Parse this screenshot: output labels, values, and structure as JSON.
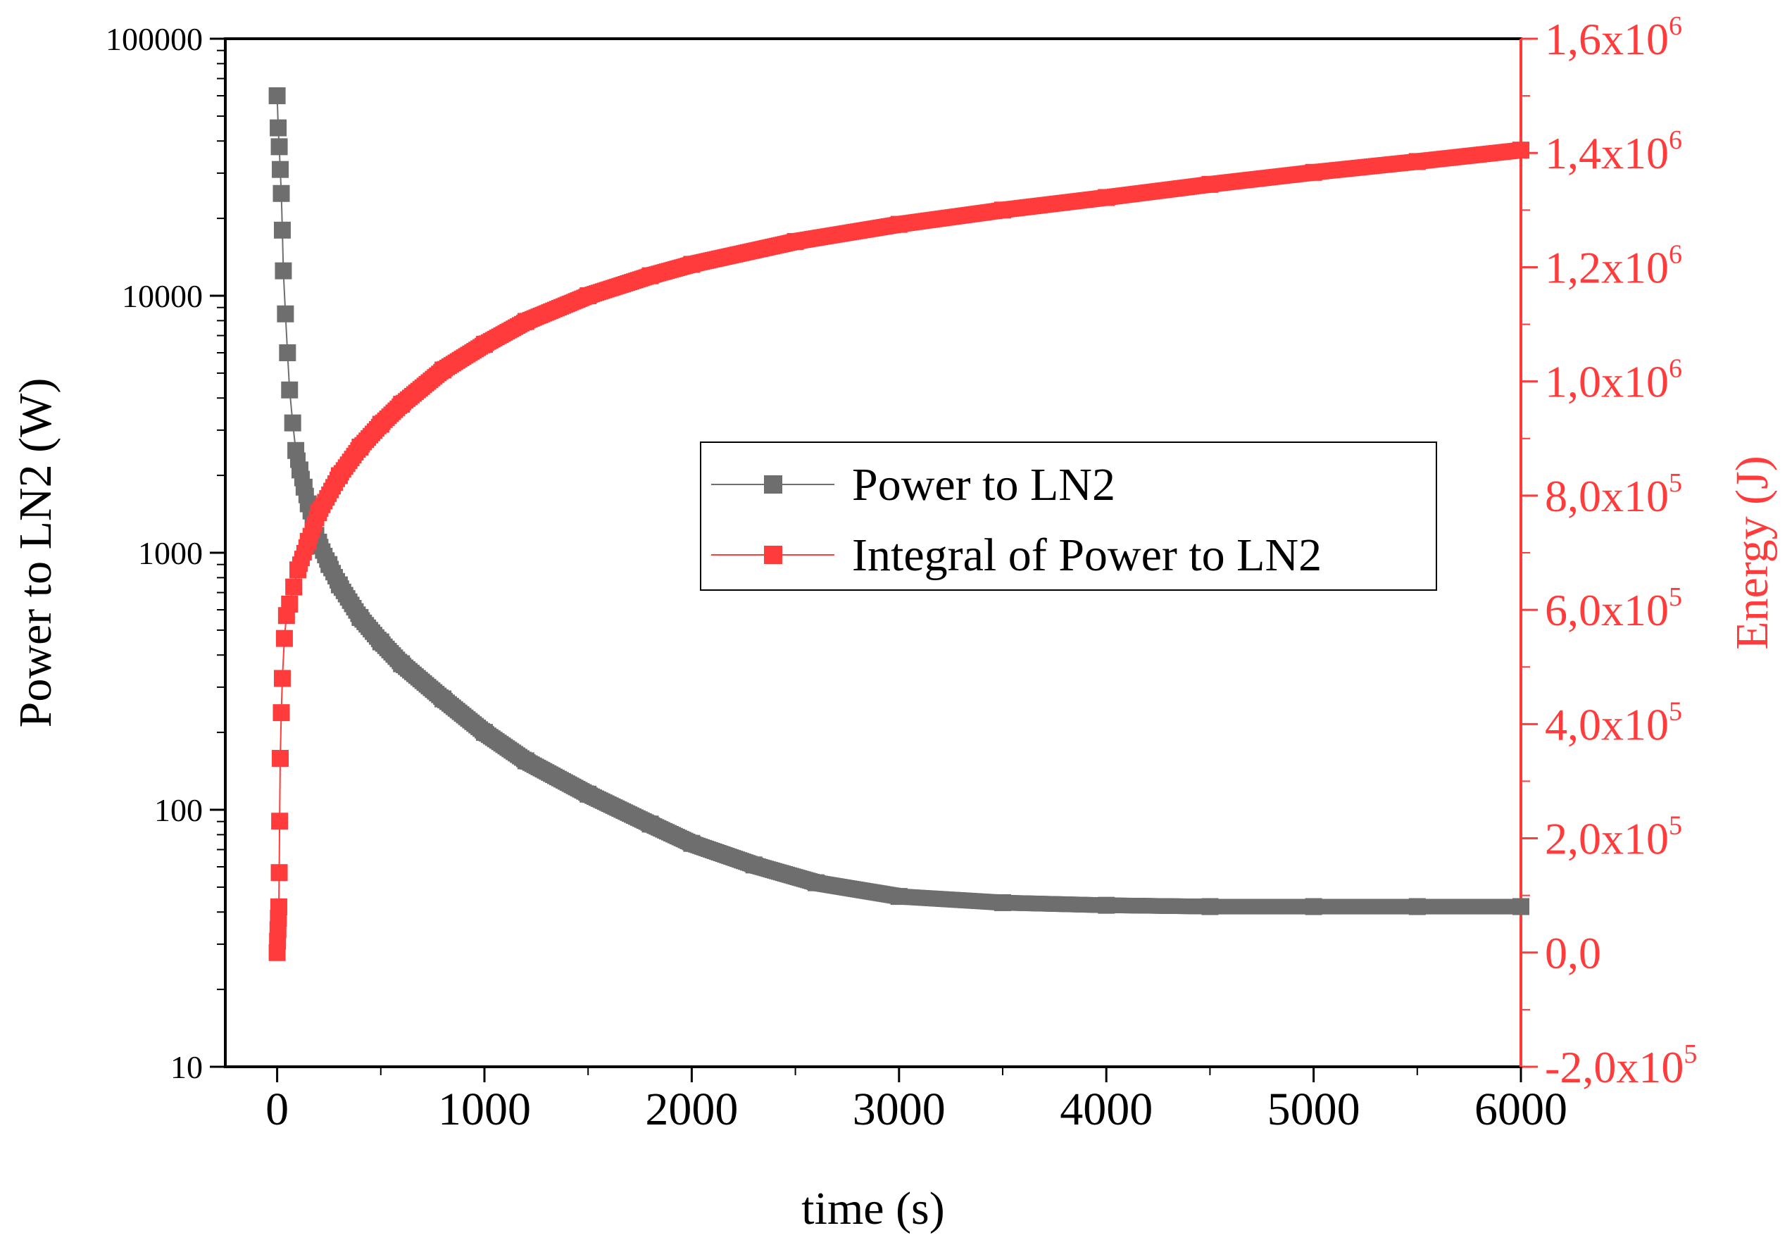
{
  "chart_data": {
    "type": "scatter",
    "xlabel": "time (s)",
    "ylabel_left": "Power to LN2 (W)",
    "ylabel_right": "Energy (J)",
    "xlim": [
      -250,
      6000
    ],
    "x_ticks": [
      "0",
      "1000",
      "2000",
      "3000",
      "4000",
      "5000",
      "6000"
    ],
    "x_tick_values": [
      0,
      1000,
      2000,
      3000,
      4000,
      5000,
      6000
    ],
    "y_left_scale": "log",
    "y_left_lim": [
      10,
      100000
    ],
    "y_left_ticks": [
      "10",
      "100",
      "1000",
      "10000",
      "100000"
    ],
    "y_left_tick_values": [
      10,
      100,
      1000,
      10000,
      100000
    ],
    "y_right_lim": [
      -200000,
      1600000
    ],
    "y_right_ticks": [
      {
        "value": -200000,
        "mantissa": "-2,0",
        "times": "x10",
        "exp": "5"
      },
      {
        "value": 0,
        "mantissa": "0,0",
        "times": "",
        "exp": ""
      },
      {
        "value": 200000,
        "mantissa": "2,0",
        "times": "x10",
        "exp": "5"
      },
      {
        "value": 400000,
        "mantissa": "4,0",
        "times": "x10",
        "exp": "5"
      },
      {
        "value": 600000,
        "mantissa": "6,0",
        "times": "x10",
        "exp": "5"
      },
      {
        "value": 800000,
        "mantissa": "8,0",
        "times": "x10",
        "exp": "5"
      },
      {
        "value": 1000000,
        "mantissa": "1,0",
        "times": "x10",
        "exp": "6"
      },
      {
        "value": 1200000,
        "mantissa": "1,2",
        "times": "x10",
        "exp": "6"
      },
      {
        "value": 1400000,
        "mantissa": "1,4",
        "times": "x10",
        "exp": "6"
      },
      {
        "value": 1600000,
        "mantissa": "1,6",
        "times": "x10",
        "exp": "6"
      }
    ],
    "legend_position": "center-right",
    "series": [
      {
        "name": "Power to LN2",
        "axis": "left",
        "color": "#6e6e6e",
        "marker": "square",
        "points": [
          [
            0,
            60000
          ],
          [
            5,
            45000
          ],
          [
            10,
            38000
          ],
          [
            15,
            31000
          ],
          [
            20,
            25000
          ],
          [
            25,
            18000
          ],
          [
            30,
            12500
          ],
          [
            40,
            8500
          ],
          [
            50,
            6000
          ],
          [
            60,
            4300
          ],
          [
            75,
            3200
          ],
          [
            90,
            2500
          ],
          [
            110,
            2100
          ],
          [
            130,
            1800
          ],
          [
            150,
            1550
          ],
          [
            175,
            1300
          ],
          [
            200,
            1100
          ],
          [
            250,
            900
          ],
          [
            300,
            750
          ],
          [
            400,
            560
          ],
          [
            500,
            450
          ],
          [
            600,
            370
          ],
          [
            800,
            270
          ],
          [
            1000,
            200
          ],
          [
            1200,
            155
          ],
          [
            1500,
            115
          ],
          [
            1800,
            88
          ],
          [
            2000,
            74
          ],
          [
            2300,
            61
          ],
          [
            2600,
            52
          ],
          [
            3000,
            46
          ],
          [
            3500,
            43.5
          ],
          [
            4000,
            42.5
          ],
          [
            4500,
            42
          ],
          [
            5000,
            42
          ],
          [
            5500,
            42
          ],
          [
            6000,
            42
          ]
        ]
      },
      {
        "name": "Integral of Power to LN2",
        "axis": "right",
        "color": "#ff3b3b",
        "marker": "square",
        "points": [
          [
            0,
            0
          ],
          [
            2,
            20000
          ],
          [
            4,
            40000
          ],
          [
            6,
            60000
          ],
          [
            8,
            80000
          ],
          [
            10,
            140000
          ],
          [
            12,
            230000
          ],
          [
            15,
            340000
          ],
          [
            20,
            420000
          ],
          [
            25,
            480000
          ],
          [
            35,
            550000
          ],
          [
            45,
            590000
          ],
          [
            60,
            610000
          ],
          [
            80,
            640000
          ],
          [
            100,
            670000
          ],
          [
            150,
            720000
          ],
          [
            200,
            770000
          ],
          [
            300,
            835000
          ],
          [
            400,
            885000
          ],
          [
            500,
            925000
          ],
          [
            600,
            960000
          ],
          [
            800,
            1020000
          ],
          [
            1000,
            1065000
          ],
          [
            1200,
            1105000
          ],
          [
            1500,
            1150000
          ],
          [
            1800,
            1185000
          ],
          [
            2000,
            1205000
          ],
          [
            2500,
            1245000
          ],
          [
            3000,
            1275000
          ],
          [
            3500,
            1300000
          ],
          [
            4000,
            1322000
          ],
          [
            4500,
            1345000
          ],
          [
            5000,
            1366000
          ],
          [
            5500,
            1385000
          ],
          [
            6000,
            1405000
          ]
        ]
      }
    ]
  }
}
